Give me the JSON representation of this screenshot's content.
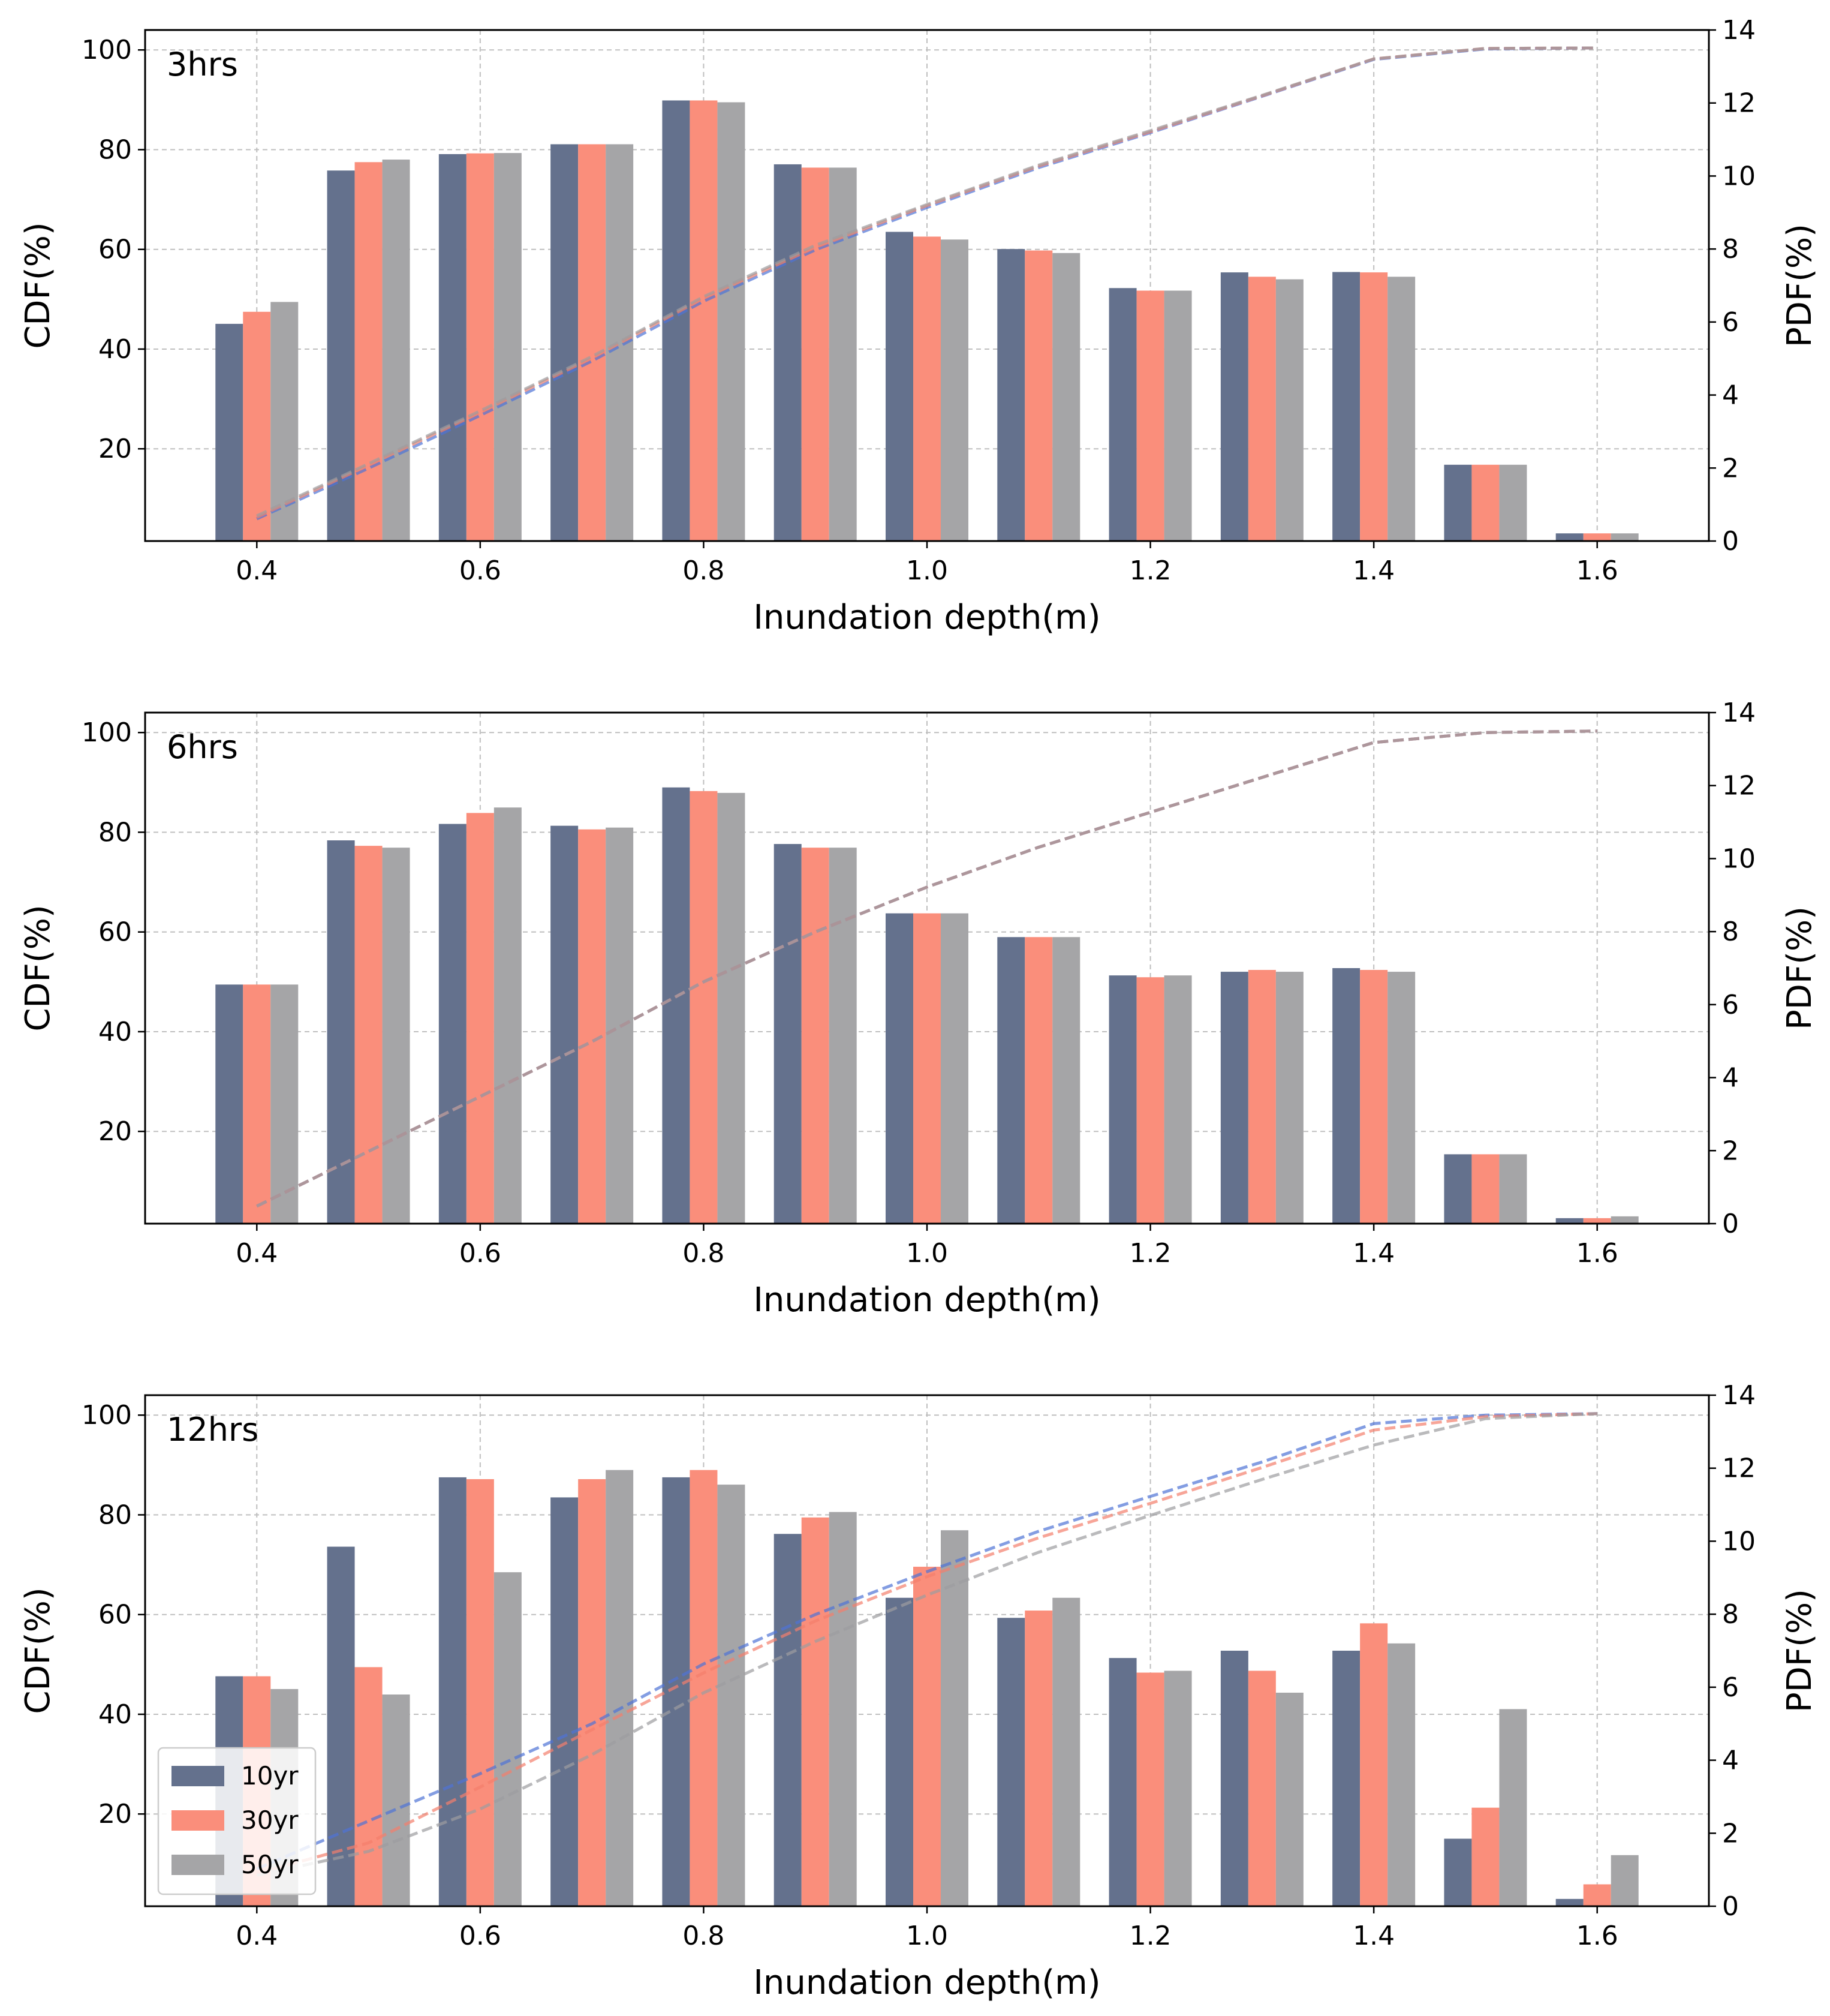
{
  "colors": {
    "bar_10yr": "#64718D",
    "bar_30yr": "#FA8E7B",
    "bar_50yr": "#A5A5A7",
    "cdf_10yr": "#4E74D6",
    "cdf_30yr": "#F47F6C",
    "cdf_50yr": "#9D9D9F",
    "grid": "#BFBFBF"
  },
  "chart_data": [
    {
      "type": "bar",
      "title": "3hrs",
      "xlabel": "Inundation depth(m)",
      "ylabel": "CDF(%)",
      "ylabel_right": "PDF(%)",
      "x": [
        0.4,
        0.5,
        0.6,
        0.7,
        0.8,
        0.9,
        1.0,
        1.1,
        1.2,
        1.3,
        1.4,
        1.5,
        1.6
      ],
      "xticks": [
        "0.4",
        "0.6",
        "0.8",
        "1.0",
        "1.2",
        "1.4",
        "1.6"
      ],
      "ylim_left": [
        1.5,
        104
      ],
      "ylim_right": [
        0,
        14
      ],
      "yticks_left": [
        "20",
        "40",
        "60",
        "80",
        "100"
      ],
      "yticks_right": [
        "0",
        "2",
        "4",
        "6",
        "8",
        "10",
        "12",
        "14"
      ],
      "grid": true,
      "series": [
        {
          "name": "10yr",
          "values": [
            5.95,
            10.15,
            10.6,
            10.87,
            12.07,
            10.32,
            8.47,
            8.0,
            6.93,
            7.36,
            7.37,
            2.09,
            0.21
          ]
        },
        {
          "name": "30yr",
          "values": [
            6.28,
            10.38,
            10.62,
            10.87,
            12.07,
            10.23,
            8.34,
            7.96,
            6.86,
            7.24,
            7.36,
            2.09,
            0.21
          ]
        },
        {
          "name": "50yr",
          "values": [
            6.55,
            10.45,
            10.63,
            10.87,
            12.02,
            10.23,
            8.26,
            7.89,
            6.86,
            7.17,
            7.24,
            2.09,
            0.21
          ]
        }
      ],
      "cdf_series": [
        {
          "name": "10yr",
          "values": [
            5.95,
            16.1,
            26.7,
            37.6,
            49.6,
            59.9,
            68.4,
            76.4,
            83.4,
            90.7,
            98.1,
            100.2,
            100.4
          ]
        },
        {
          "name": "30yr",
          "values": [
            6.28,
            16.7,
            27.3,
            38.2,
            50.2,
            60.4,
            68.8,
            76.7,
            83.6,
            90.8,
            98.2,
            100.3,
            100.4
          ]
        },
        {
          "name": "50yr",
          "values": [
            6.55,
            17.0,
            27.6,
            38.5,
            50.5,
            60.8,
            69.0,
            76.9,
            83.8,
            90.9,
            98.2,
            100.3,
            100.4
          ]
        }
      ],
      "legend": null
    },
    {
      "type": "bar",
      "title": "6hrs",
      "xlabel": "Inundation depth(m)",
      "ylabel": "CDF(%)",
      "ylabel_right": "PDF(%)",
      "x": [
        0.4,
        0.5,
        0.6,
        0.7,
        0.8,
        0.9,
        1.0,
        1.1,
        1.2,
        1.3,
        1.4,
        1.5,
        1.6
      ],
      "xticks": [
        "0.4",
        "0.6",
        "0.8",
        "1.0",
        "1.2",
        "1.4",
        "1.6"
      ],
      "ylim_left": [
        1.5,
        104
      ],
      "ylim_right": [
        0,
        14
      ],
      "yticks_left": [
        "20",
        "40",
        "60",
        "80",
        "100"
      ],
      "yticks_right": [
        "0",
        "2",
        "4",
        "6",
        "8",
        "10",
        "12",
        "14"
      ],
      "grid": true,
      "series": [
        {
          "name": "10yr",
          "values": [
            6.55,
            10.5,
            10.95,
            10.9,
            11.95,
            10.4,
            8.5,
            7.85,
            6.8,
            6.9,
            7.0,
            1.9,
            0.15
          ]
        },
        {
          "name": "30yr",
          "values": [
            6.55,
            10.35,
            11.25,
            10.8,
            11.85,
            10.3,
            8.5,
            7.85,
            6.75,
            6.95,
            6.95,
            1.9,
            0.15
          ]
        },
        {
          "name": "50yr",
          "values": [
            6.55,
            10.3,
            11.4,
            10.85,
            11.8,
            10.3,
            8.5,
            7.85,
            6.8,
            6.9,
            6.9,
            1.9,
            0.2
          ]
        }
      ],
      "cdf_series": [
        {
          "name": "10yr",
          "values": [
            5.0,
            16.0,
            27.0,
            38.0,
            50.0,
            60.0,
            69.0,
            77.0,
            84.0,
            91.0,
            98.0,
            100.0,
            100.3
          ]
        },
        {
          "name": "30yr",
          "values": [
            5.0,
            16.0,
            27.0,
            38.0,
            50.0,
            60.0,
            69.0,
            77.0,
            84.0,
            91.0,
            98.0,
            100.0,
            100.3
          ]
        },
        {
          "name": "50yr",
          "values": [
            5.0,
            16.0,
            27.0,
            38.0,
            50.0,
            60.0,
            69.0,
            77.0,
            84.0,
            91.0,
            98.0,
            100.0,
            100.3
          ]
        }
      ],
      "legend": null
    },
    {
      "type": "bar",
      "title": "12hrs",
      "xlabel": "Inundation depth(m)",
      "ylabel": "CDF(%)",
      "ylabel_right": "PDF(%)",
      "x": [
        0.4,
        0.5,
        0.6,
        0.7,
        0.8,
        0.9,
        1.0,
        1.1,
        1.2,
        1.3,
        1.4,
        1.5,
        1.6
      ],
      "xticks": [
        "0.4",
        "0.6",
        "0.8",
        "1.0",
        "1.2",
        "1.4",
        "1.6"
      ],
      "ylim_left": [
        1.5,
        104
      ],
      "ylim_right": [
        0,
        14
      ],
      "yticks_left": [
        "20",
        "40",
        "60",
        "80",
        "100"
      ],
      "yticks_right": [
        "0",
        "2",
        "4",
        "6",
        "8",
        "10",
        "12",
        "14"
      ],
      "grid": true,
      "series": [
        {
          "name": "10yr",
          "values": [
            6.3,
            9.85,
            11.75,
            11.2,
            11.75,
            10.2,
            8.45,
            7.9,
            6.8,
            7.0,
            7.0,
            1.85,
            0.2
          ]
        },
        {
          "name": "30yr",
          "values": [
            6.3,
            6.55,
            11.7,
            11.7,
            11.95,
            10.65,
            9.3,
            8.1,
            6.4,
            6.45,
            7.75,
            2.7,
            0.6
          ]
        },
        {
          "name": "50yr",
          "values": [
            5.95,
            5.8,
            9.15,
            11.95,
            11.55,
            10.8,
            10.3,
            8.45,
            6.45,
            5.85,
            7.2,
            5.4,
            1.4
          ]
        }
      ],
      "cdf_series": [
        {
          "name": "10yr",
          "values": [
            9.0,
            18.6,
            28.1,
            38.1,
            50.1,
            60.0,
            68.6,
            76.7,
            83.7,
            90.6,
            98.3,
            100.0,
            100.3
          ]
        },
        {
          "name": "30yr",
          "values": [
            8.1,
            14.2,
            25.4,
            36.9,
            48.3,
            58.7,
            67.6,
            75.4,
            82.3,
            89.5,
            97.0,
            99.7,
            100.3
          ]
        },
        {
          "name": "50yr",
          "values": [
            7.7,
            12.5,
            21.0,
            31.9,
            44.3,
            54.6,
            63.9,
            72.5,
            79.9,
            87.1,
            94.0,
            99.3,
            100.3
          ]
        }
      ],
      "legend": {
        "location": "lower-left",
        "entries": [
          "10yr",
          "30yr",
          "50yr"
        ]
      }
    }
  ]
}
